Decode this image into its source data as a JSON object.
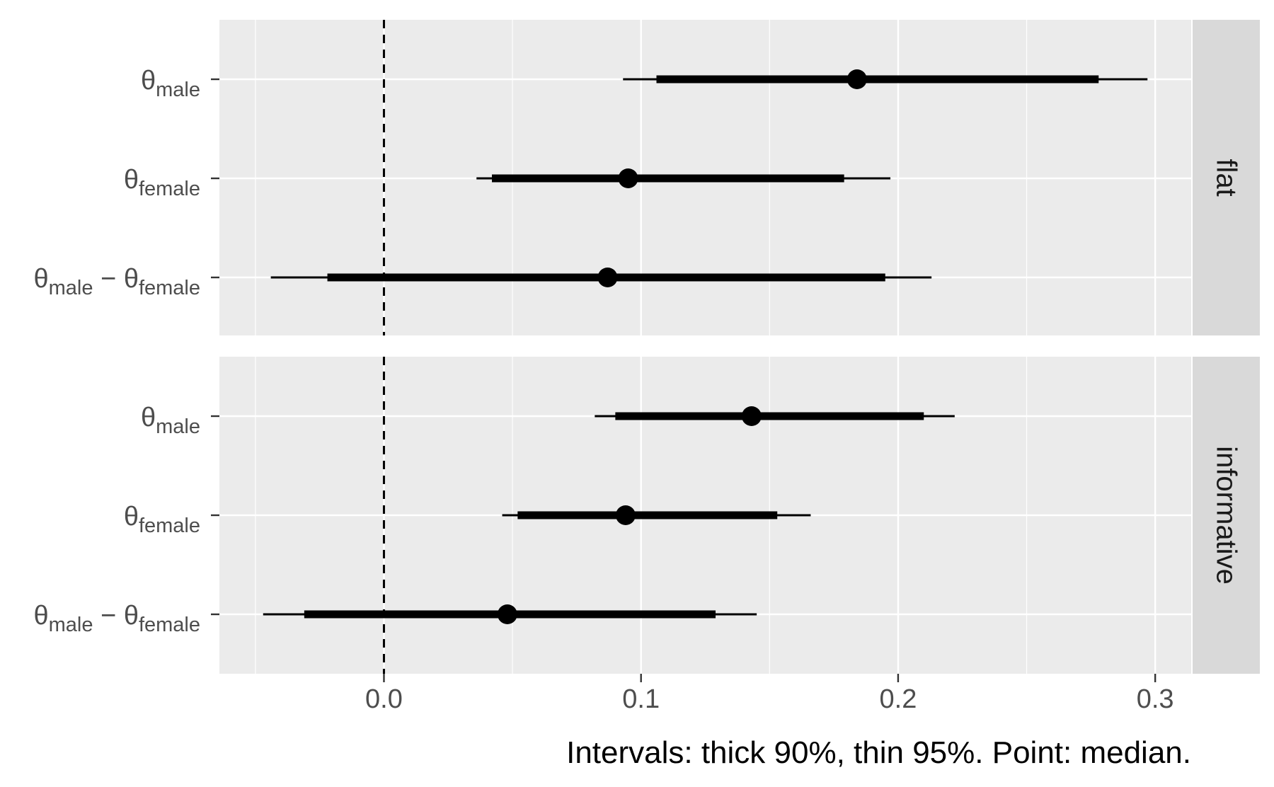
{
  "chart_data": {
    "type": "interval",
    "facets": [
      {
        "strip": "flat",
        "rows": [
          {
            "symbol": "θ",
            "sub": "male",
            "minus": "",
            "symbol2": "",
            "sub2": "",
            "median": 0.184,
            "lo90": 0.106,
            "hi90": 0.278,
            "lo95": 0.093,
            "hi95": 0.297
          },
          {
            "symbol": "θ",
            "sub": "female",
            "minus": "",
            "symbol2": "",
            "sub2": "",
            "median": 0.095,
            "lo90": 0.042,
            "hi90": 0.179,
            "lo95": 0.036,
            "hi95": 0.197
          },
          {
            "symbol": "θ",
            "sub": "male",
            "minus": "−",
            "symbol2": "θ",
            "sub2": "female",
            "median": 0.087,
            "lo90": -0.022,
            "hi90": 0.195,
            "lo95": -0.044,
            "hi95": 0.213
          }
        ]
      },
      {
        "strip": "informative",
        "rows": [
          {
            "symbol": "θ",
            "sub": "male",
            "minus": "",
            "symbol2": "",
            "sub2": "",
            "median": 0.143,
            "lo90": 0.09,
            "hi90": 0.21,
            "lo95": 0.082,
            "hi95": 0.222
          },
          {
            "symbol": "θ",
            "sub": "female",
            "minus": "",
            "symbol2": "",
            "sub2": "",
            "median": 0.094,
            "lo90": 0.052,
            "hi90": 0.153,
            "lo95": 0.046,
            "hi95": 0.166
          },
          {
            "symbol": "θ",
            "sub": "male",
            "minus": "−",
            "symbol2": "θ",
            "sub2": "female",
            "median": 0.048,
            "lo90": -0.031,
            "hi90": 0.129,
            "lo95": -0.047,
            "hi95": 0.145
          }
        ]
      }
    ],
    "x_ticks": [
      0.0,
      0.1,
      0.2,
      0.3
    ],
    "x_tick_labels": [
      "0.0",
      "0.1",
      "0.2",
      "0.3"
    ],
    "xlim": [
      -0.064,
      0.314
    ],
    "reference_line": 0.0,
    "caption": "Intervals: thick 90%, thin 95%. Point: median.",
    "grid": true
  },
  "colors": {
    "panel": "#ebebeb",
    "grid": "#ffffff",
    "strip": "#d9d9d9",
    "marks": "#000000",
    "axis_text": "#4d4d4d"
  }
}
